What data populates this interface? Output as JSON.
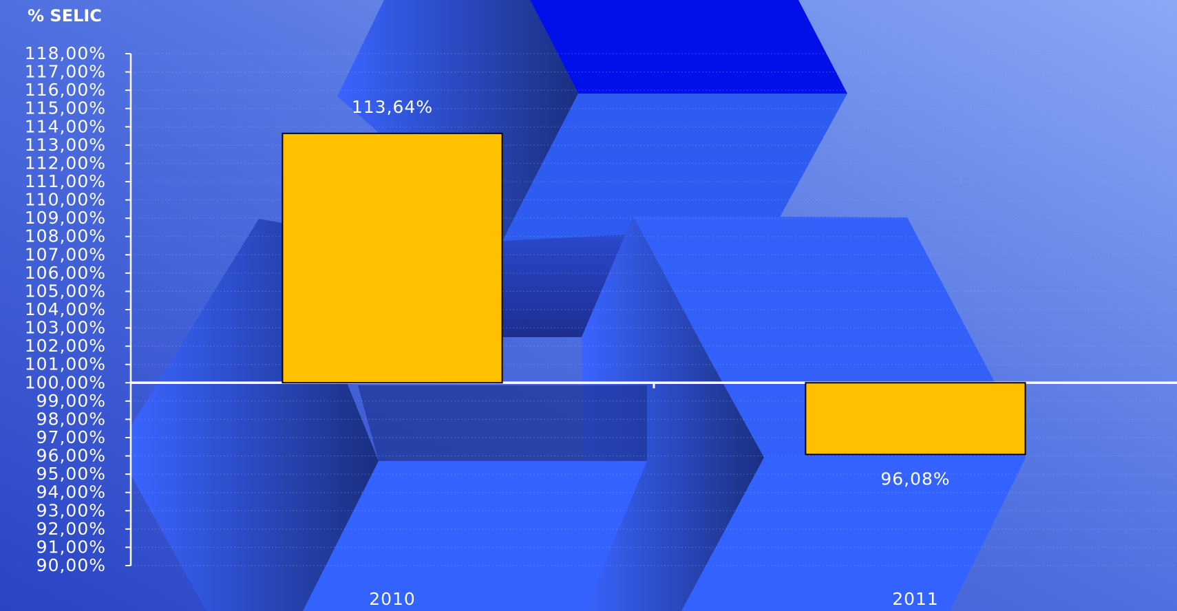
{
  "chart_data": {
    "type": "bar",
    "title": "% SELIC",
    "categories": [
      "2010",
      "2011"
    ],
    "values": [
      113.64,
      96.08
    ],
    "value_labels": [
      "113,64%",
      "96,08%"
    ],
    "color": "#FFC000",
    "bar_base": 100,
    "ylim": [
      90,
      118
    ],
    "yticks": [
      {
        "value": 90,
        "label": "90,00%"
      },
      {
        "value": 91,
        "label": "91,00%"
      },
      {
        "value": 92,
        "label": "92,00%"
      },
      {
        "value": 93,
        "label": "93,00%"
      },
      {
        "value": 94,
        "label": "94,00%"
      },
      {
        "value": 95,
        "label": "95,00%"
      },
      {
        "value": 96,
        "label": "96,00%"
      },
      {
        "value": 97,
        "label": "97,00%"
      },
      {
        "value": 98,
        "label": "98,00%"
      },
      {
        "value": 99,
        "label": "99,00%"
      },
      {
        "value": 100,
        "label": "100,00%"
      },
      {
        "value": 101,
        "label": "101,00%"
      },
      {
        "value": 102,
        "label": "102,00%"
      },
      {
        "value": 103,
        "label": "103,00%"
      },
      {
        "value": 104,
        "label": "104,00%"
      },
      {
        "value": 105,
        "label": "105,00%"
      },
      {
        "value": 106,
        "label": "106,00%"
      },
      {
        "value": 107,
        "label": "107,00%"
      },
      {
        "value": 108,
        "label": "108,00%"
      },
      {
        "value": 109,
        "label": "109,00%"
      },
      {
        "value": 110,
        "label": "110,00%"
      },
      {
        "value": 111,
        "label": "111,00%"
      },
      {
        "value": 112,
        "label": "112,00%"
      },
      {
        "value": 113,
        "label": "113,00%"
      },
      {
        "value": 114,
        "label": "114,00%"
      },
      {
        "value": 115,
        "label": "115,00%"
      },
      {
        "value": 116,
        "label": "116,00%"
      },
      {
        "value": 117,
        "label": "117,00%"
      },
      {
        "value": 118,
        "label": "118,00%"
      }
    ],
    "grid": true
  }
}
